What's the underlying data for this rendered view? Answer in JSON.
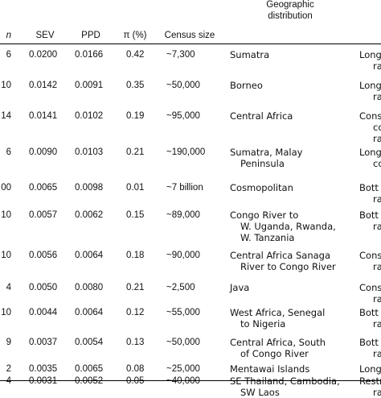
{
  "headers": {
    "n": "n",
    "sev": "SEV",
    "ppd": "PPD",
    "pi": "π (%)",
    "census": "Census size",
    "geo": [
      "Geographic",
      "distribution"
    ]
  },
  "rows": [
    {
      "n": "6",
      "sev": "0.0200",
      "ppd": "0.0166",
      "pi": "0.42",
      "census": "~7,300",
      "geo": [
        "Sumatra"
      ],
      "pattern": [
        "Long",
        "ra"
      ]
    },
    {
      "n": "10",
      "sev": "0.0142",
      "ppd": "0.0091",
      "pi": "0.35",
      "census": "~50,000",
      "geo": [
        "Borneo"
      ],
      "pattern": [
        "Long",
        "ra"
      ]
    },
    {
      "n": "14",
      "sev": "0.0141",
      "ppd": "0.0102",
      "pi": "0.19",
      "census": "~95,000",
      "geo": [
        "Central Africa"
      ],
      "pattern": [
        "Cons",
        "co",
        "ra"
      ]
    },
    {
      "n": "6",
      "sev": "0.0090",
      "ppd": "0.0103",
      "pi": "0.21",
      "census": "~190,000",
      "geo": [
        "Sumatra, Malay",
        "Peninsula"
      ],
      "pattern": [
        "Long",
        "co"
      ]
    },
    {
      "n": "00",
      "sev": "0.0065",
      "ppd": "0.0098",
      "pi": "0.01",
      "census": "~7 billion",
      "geo": [
        "Cosmopolitan"
      ],
      "pattern": [
        "Bott",
        "ra"
      ]
    },
    {
      "n": "10",
      "sev": "0.0057",
      "ppd": "0.0062",
      "pi": "0.15",
      "census": "~89,000",
      "geo": [
        "Congo River to",
        "W. Uganda, Rwanda,",
        "W. Tanzania"
      ],
      "pattern": [
        "Bott",
        "ra"
      ]
    },
    {
      "n": "10",
      "sev": "0.0056",
      "ppd": "0.0064",
      "pi": "0.18",
      "census": "~90,000",
      "geo": [
        "Central Africa Sanaga",
        "River to Congo River"
      ],
      "pattern": [
        "Cons",
        "ra"
      ]
    },
    {
      "n": "4",
      "sev": "0.0050",
      "ppd": "0.0080",
      "pi": "0.21",
      "census": "~2,500",
      "geo": [
        "Java"
      ],
      "pattern": [
        "Cons",
        "ra"
      ]
    },
    {
      "n": "10",
      "sev": "0.0044",
      "ppd": "0.0064",
      "pi": "0.12",
      "census": "~55,000",
      "geo": [
        "West Africa, Senegal",
        "to Nigeria"
      ],
      "pattern": [
        "Bott",
        "ra"
      ]
    },
    {
      "n": "9",
      "sev": "0.0037",
      "ppd": "0.0054",
      "pi": "0.13",
      "census": "~50,000",
      "geo": [
        "Central Africa, South",
        "of Congo River"
      ],
      "pattern": [
        "Bott",
        "ra"
      ]
    },
    {
      "n": "2",
      "sev": "0.0035",
      "ppd": "0.0065",
      "pi": "0.08",
      "census": "~25,000",
      "geo": [
        "Mentawai Islands"
      ],
      "pattern": [
        "Long"
      ]
    },
    {
      "n": "4",
      "sev": "0.0031",
      "ppd": "0.0052",
      "pi": "0.05",
      "census": "~40,000",
      "geo": [
        "SE Thailand, Cambodia,",
        "SW Laos"
      ],
      "pattern": [
        "Restr",
        "ra"
      ]
    }
  ]
}
